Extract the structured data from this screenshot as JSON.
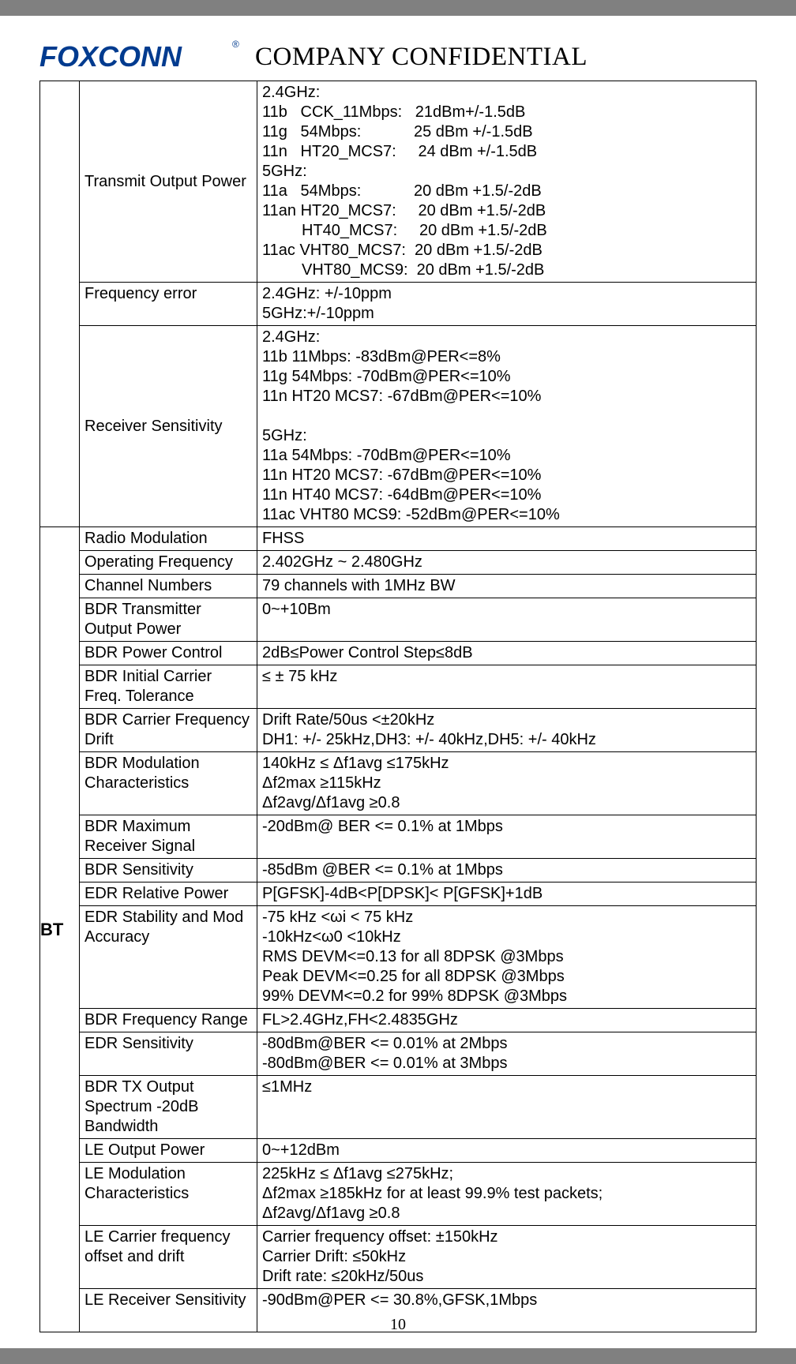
{
  "header": {
    "title": "COMPANY  CONFIDENTIAL",
    "logo_color": "#003b8f",
    "logo_text": "FOXCONN"
  },
  "page_number": "10",
  "sections": {
    "wifi": {
      "rows": [
        {
          "param": "Transmit Output Power",
          "value": "2.4GHz:\n11b   CCK_11Mbps:   21dBm+/-1.5dB\n11g   54Mbps:            25 dBm +/-1.5dB\n11n   HT20_MCS7:     24 dBm +/-1.5dB\n5GHz:\n11a   54Mbps:            20 dBm +1.5/-2dB\n11an HT20_MCS7:     20 dBm +1.5/-2dB\n         HT40_MCS7:     20 dBm +1.5/-2dB\n11ac VHT80_MCS7:  20 dBm +1.5/-2dB\n         VHT80_MCS9:  20 dBm +1.5/-2dB"
        },
        {
          "param": "Frequency error",
          "value": "2.4GHz: +/-10ppm\n5GHz:+/-10ppm"
        },
        {
          "param": "Receiver Sensitivity",
          "value": "2.4GHz:\n11b 11Mbps: -83dBm@PER<=8%\n11g 54Mbps: -70dBm@PER<=10%\n11n HT20 MCS7: -67dBm@PER<=10%\n\n5GHz:\n11a 54Mbps: -70dBm@PER<=10%\n11n HT20 MCS7: -67dBm@PER<=10%\n11n HT40 MCS7: -64dBm@PER<=10%\n11ac VHT80 MCS9: -52dBm@PER<=10%"
        }
      ]
    },
    "bt": {
      "label": "BT",
      "rows": [
        {
          "param": "Radio Modulation",
          "value": "FHSS"
        },
        {
          "param": "Operating Frequency",
          "value": "2.402GHz ~ 2.480GHz"
        },
        {
          "param": "Channel Numbers",
          "value": "79 channels with 1MHz BW"
        },
        {
          "param": "BDR Transmitter Output Power",
          "value": "0~+10Bm"
        },
        {
          "param": "BDR Power Control",
          "value": "2dB≤Power Control Step≤8dB"
        },
        {
          "param": "BDR Initial Carrier Freq. Tolerance",
          "value": "≤ ± 75 kHz"
        },
        {
          "param": "BDR Carrier Frequency Drift",
          "value": "Drift Rate/50us <±20kHz\nDH1: +/- 25kHz,DH3: +/- 40kHz,DH5: +/- 40kHz"
        },
        {
          "param": "BDR Modulation Characteristics",
          "value": "140kHz ≤ Δf1avg ≤175kHz\nΔf2max ≥115kHz\nΔf2avg/Δf1avg ≥0.8"
        },
        {
          "param": "BDR Maximum Receiver Signal",
          "value": "-20dBm@ BER <= 0.1% at 1Mbps"
        },
        {
          "param": "BDR Sensitivity",
          "value": "-85dBm @BER <= 0.1% at 1Mbps"
        },
        {
          "param": "EDR Relative Power",
          "value": "P[GFSK]-4dB<P[DPSK]< P[GFSK]+1dB"
        },
        {
          "param": "EDR Stability and Mod Accuracy",
          "value": "-75 kHz <ωi < 75 kHz\n-10kHz<ω0 <10kHz\nRMS DEVM<=0.13 for all 8DPSK @3Mbps\nPeak DEVM<=0.25 for all 8DPSK @3Mbps\n99% DEVM<=0.2 for 99% 8DPSK @3Mbps"
        },
        {
          "param": "BDR Frequency Range",
          "value": "FL>2.4GHz,FH<2.4835GHz"
        },
        {
          "param": "EDR Sensitivity",
          "value": "-80dBm@BER <= 0.01% at 2Mbps\n-80dBm@BER <= 0.01% at 3Mbps"
        },
        {
          "param": "BDR TX Output Spectrum -20dB Bandwidth",
          "value": "≤1MHz"
        },
        {
          "param": "LE Output Power",
          "value": "0~+12dBm"
        },
        {
          "param": "LE Modulation Characteristics",
          "value": "225kHz ≤ Δf1avg ≤275kHz;\nΔf2max ≥185kHz for at least 99.9% test packets;\nΔf2avg/Δf1avg ≥0.8"
        },
        {
          "param": "LE Carrier frequency offset and drift",
          "value": "Carrier frequency offset: ±150kHz\nCarrier Drift: ≤50kHz\nDrift rate: ≤20kHz/50us"
        },
        {
          "param": "LE Receiver Sensitivity",
          "value": "-90dBm@PER <= 30.8%,GFSK,1Mbps\n "
        }
      ]
    }
  }
}
